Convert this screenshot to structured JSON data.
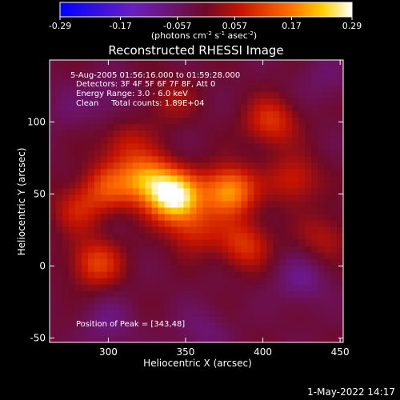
{
  "chart_data": {
    "type": "heatmap",
    "title": "Reconstructed RHESSI Image",
    "xlabel": "Heliocentric X (arcsec)",
    "ylabel": "Heliocentric Y (arcsec)",
    "xlim": [
      262,
      452
    ],
    "ylim": [
      -53,
      143
    ],
    "xticks": [
      "300",
      "350",
      "400",
      "450"
    ],
    "yticks": [
      "-50",
      "0",
      "50",
      "100"
    ],
    "colorbar": {
      "label_pre": "(photons cm",
      "label_exp1": "-2",
      "label_mid": " s",
      "label_exp2": "-1",
      "label_mid2": " asec",
      "label_exp3": "-2",
      "label_post": ")",
      "ticks": [
        "-0.29",
        "-0.17",
        "-0.057",
        "0.057",
        "0.17",
        "0.29"
      ],
      "range": [
        -0.29,
        0.29
      ]
    },
    "annotations": {
      "time": "5-Aug-2005 01:56:16.000 to 01:59:28.000",
      "detectors": "Detectors: 3F 4F 5F 6F 7F 8F, Att 0",
      "energy": "Energy Range: 3.0 - 6.0 keV",
      "clean": "Clean     Total counts: 1.89E+04",
      "peak": "Position of Peak = [343,48]"
    },
    "sources": [
      {
        "x": 343,
        "y": 48,
        "value": 0.29
      },
      {
        "x": 325,
        "y": 60,
        "value": 0.2
      },
      {
        "x": 378,
        "y": 52,
        "value": 0.22
      },
      {
        "x": 300,
        "y": 55,
        "value": 0.12
      },
      {
        "x": 292,
        "y": 2,
        "value": 0.13
      },
      {
        "x": 388,
        "y": 15,
        "value": 0.12
      },
      {
        "x": 355,
        "y": 25,
        "value": 0.1
      },
      {
        "x": 405,
        "y": 100,
        "value": 0.12
      },
      {
        "x": 420,
        "y": 60,
        "value": 0.1
      },
      {
        "x": 280,
        "y": 40,
        "value": 0.09
      },
      {
        "x": 310,
        "y": 85,
        "value": 0.08
      },
      {
        "x": 440,
        "y": 20,
        "value": 0.07
      },
      {
        "x": 340,
        "y": 115,
        "value": 0.06
      },
      {
        "x": 300,
        "y": 115,
        "value": -0.05
      },
      {
        "x": 425,
        "y": -10,
        "value": -0.07
      },
      {
        "x": 300,
        "y": -40,
        "value": -0.06
      },
      {
        "x": 270,
        "y": 110,
        "value": -0.03
      },
      {
        "x": 440,
        "y": 130,
        "value": -0.04
      },
      {
        "x": 360,
        "y": -45,
        "value": -0.05
      }
    ]
  },
  "footer": {
    "date": "1-May-2022 14:17"
  }
}
